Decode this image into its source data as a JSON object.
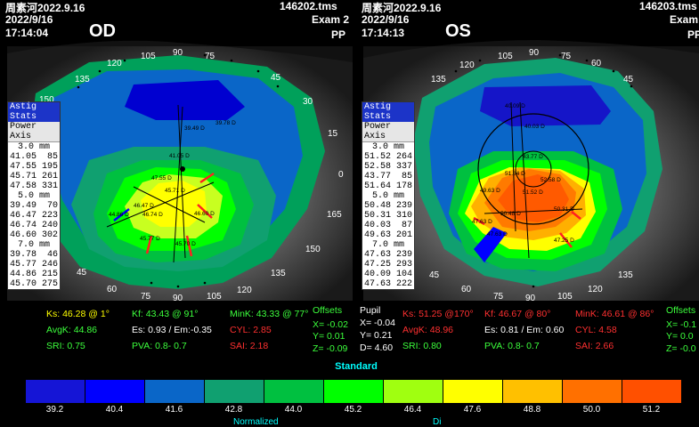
{
  "od": {
    "patient": "周素河2022.9.16",
    "file": "146202.tms",
    "date": "2022/9/16",
    "exam": "Exam 2",
    "time": "17:14:04",
    "mode": "PP",
    "eye": "OD",
    "axis_labels": [
      "90",
      "105",
      "120",
      "135",
      "150",
      "165",
      "0",
      "15",
      "30",
      "45",
      "60",
      "75",
      "90",
      "105",
      "120",
      "135",
      "150",
      "165",
      "180",
      "15",
      "30",
      "45",
      "60",
      "75"
    ],
    "stats": {
      "tab1": "Astig Stats",
      "tab2": "Power Axis",
      "groups": [
        {
          "mm": "3.0 mm",
          "rows": [
            [
              "41.05",
              "85"
            ],
            [
              "47.55",
              "195"
            ],
            [
              "45.71",
              "261"
            ],
            [
              "47.58",
              "331"
            ]
          ]
        },
        {
          "mm": "5.0 mm",
          "rows": [
            [
              "39.49",
              "70"
            ],
            [
              "46.47",
              "223"
            ],
            [
              "46.74",
              "240"
            ],
            [
              "46.60",
              "302"
            ]
          ]
        },
        {
          "mm": "7.0 mm",
          "rows": [
            [
              "39.78",
              "46"
            ],
            [
              "45.77",
              "246"
            ],
            [
              "44.86",
              "215"
            ],
            [
              "45.70",
              "275"
            ]
          ]
        }
      ]
    },
    "map_labels": [
      "39.49 D",
      "39.78 D",
      "41.05 D",
      "47.55 D",
      "45.71 D",
      "46.47 D",
      "44.86 D",
      "46.74 D",
      "46.60 D",
      "45.77 D",
      "45.70 D"
    ],
    "info": {
      "ks": "Ks: 46.28 @  1°",
      "kf": "Kf: 43.43 @ 91°",
      "mink": "MinK: 43.33 @ 77°",
      "offsets": "Offsets",
      "avgk": "AvgK: 44.86",
      "es": "Es: 0.93 / Em:-0.35",
      "cyl": "CYL:  2.85",
      "x": "X= -0.02",
      "y": "Y=  0.01",
      "sri": "SRI: 0.75",
      "pva": "PVA:   0.8-  0.7",
      "sai": "SAI: 2.18",
      "z": "Z= -0.09"
    }
  },
  "os": {
    "patient": "周素河2022.9.16",
    "file": "146203.tms",
    "date": "2022/9/16",
    "exam": "Exam",
    "time": "17:14:13",
    "mode": "PP",
    "eye": "OS",
    "axis_labels": [
      "90",
      "105",
      "120",
      "135",
      "150",
      "165",
      "0",
      "15",
      "30",
      "45",
      "60",
      "75",
      "90",
      "105",
      "120",
      "135",
      "150",
      "165",
      "180",
      "15",
      "30",
      "45",
      "60",
      "75"
    ],
    "stats": {
      "tab1": "Astig Stats",
      "tab2": "Power Axis",
      "groups": [
        {
          "mm": "3.0 mm",
          "rows": [
            [
              "51.52",
              "264"
            ],
            [
              "52.58",
              "337"
            ],
            [
              "43.77",
              "85"
            ],
            [
              "51.64",
              "178"
            ]
          ]
        },
        {
          "mm": "5.0 mm",
          "rows": [
            [
              "50.48",
              "239"
            ],
            [
              "50.31",
              "310"
            ],
            [
              "40.03",
              "87"
            ],
            [
              "49.63",
              "201"
            ]
          ]
        },
        {
          "mm": "7.0 mm",
          "rows": [
            [
              "47.63",
              "239"
            ],
            [
              "47.25",
              "293"
            ],
            [
              "40.09",
              "104"
            ],
            [
              "47.63",
              "222"
            ]
          ]
        }
      ]
    },
    "map_labels": [
      "40.09 D",
      "40.03 D",
      "43.77 D",
      "51.64 D",
      "52.58 D",
      "51.52 D",
      "49.63 D",
      "50.48 D",
      "50.31 D",
      "47.63 D",
      "47.63 D",
      "47.25 D"
    ],
    "info": {
      "pupil": "Pupil",
      "ks": "Ks: 51.25 @170°",
      "kf": "Kf: 46.67 @ 80°",
      "mink": "MinK: 46.61 @ 86°",
      "offsets": "Offsets",
      "px": "X= -0.04",
      "avgk": "AvgK: 48.96",
      "es": "Es: 0.81 / Em: 0.60",
      "cyl": "CYL:  4.58",
      "x": "X= -0.1",
      "py": "Y=  0.21",
      "sri": "SRI: 0.80",
      "pva": "PVA:   0.8-  0.7",
      "sai": "SAI: 2.66",
      "y": "Y=  0.0",
      "d": "D=  4.60",
      "z": "Z= -0.0"
    }
  },
  "legend": {
    "title": "Standard",
    "colors": [
      "#1515d6",
      "#0000ff",
      "#0a66c8",
      "#10a070",
      "#00c040",
      "#00ff00",
      "#a0ff10",
      "#ffff00",
      "#ffc000",
      "#ff7000",
      "#ff5000"
    ],
    "ticks": [
      "39.2",
      "40.4",
      "41.6",
      "42.8",
      "44.0",
      "45.2",
      "46.4",
      "47.6",
      "48.8",
      "50.0",
      "51.2"
    ],
    "footer_left": "Normalized",
    "footer_right": "Di"
  }
}
